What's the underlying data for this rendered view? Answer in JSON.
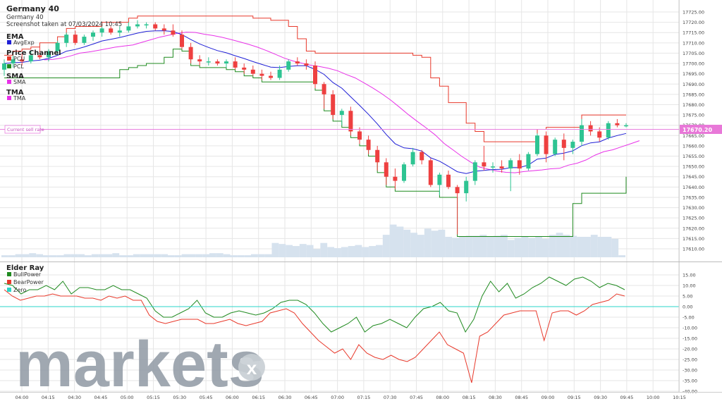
{
  "header": {
    "title": "Germany 40",
    "subtitle": "Germany 40",
    "screenshot_note": "Screenshot taken at 07/03/2024 10:45"
  },
  "legend": {
    "ema_title": "EMA",
    "ema_items": [
      {
        "label": "AvgExp",
        "color": "#1f1fd6"
      }
    ],
    "pc_title": "Price Channel",
    "pc_items": [
      {
        "label": "PCU",
        "color": "#e8392b"
      },
      {
        "label": "PCL",
        "color": "#1f8a1f"
      }
    ],
    "sma_title": "SMA",
    "sma_items": [
      {
        "label": "SMA",
        "color": "#e832e8"
      }
    ],
    "tma_title": "TMA",
    "tma_items": [
      {
        "label": "TMA",
        "color": "#e832e8"
      }
    ]
  },
  "sell_rate": {
    "label": "Current sell rate",
    "value": "17670.20",
    "level": 17670.2
  },
  "elder": {
    "title": "Elder Ray",
    "items": [
      {
        "label": "BullPower",
        "color": "#1f8a1f"
      },
      {
        "label": "BearPower",
        "color": "#e8392b"
      },
      {
        "label": "Zero",
        "color": "#2ad6c8"
      }
    ]
  },
  "watermark": "markets",
  "colors": {
    "up": "#2ec492",
    "down": "#ee4040",
    "volume": "#d6e2ee",
    "grid": "#e6e6e6"
  },
  "chart_data": [
    {
      "type": "candlestick",
      "title": "Germany 40",
      "x_ticks": [
        "04:00",
        "04:15",
        "04:30",
        "04:45",
        "05:00",
        "05:15",
        "05:30",
        "05:45",
        "06:00",
        "06:15",
        "06:30",
        "06:45",
        "07:00",
        "07:15",
        "07:30",
        "07:45",
        "08:00",
        "08:15",
        "08:30",
        "08:45",
        "09:00",
        "09:15",
        "09:30",
        "09:45",
        "10:00",
        "10:15"
      ],
      "y_ticks": [
        "17725.00",
        "17720.00",
        "17715.00",
        "17710.00",
        "17705.00",
        "17700.00",
        "17695.00",
        "17690.00",
        "17685.00",
        "17680.00",
        "17675.00",
        "17670.00",
        "17665.00",
        "17660.00",
        "17655.00",
        "17650.00",
        "17645.00",
        "17640.00",
        "17635.00",
        "17630.00",
        "17625.00",
        "17620.00",
        "17615.00",
        "17610.00"
      ],
      "ylim": [
        17609,
        17728
      ],
      "candles": [
        {
          "o": 17697,
          "h": 17702,
          "l": 17694,
          "c": 17700
        },
        {
          "o": 17700,
          "h": 17704,
          "l": 17698,
          "c": 17702
        },
        {
          "o": 17702,
          "h": 17705,
          "l": 17699,
          "c": 17701
        },
        {
          "o": 17701,
          "h": 17706,
          "l": 17700,
          "c": 17704
        },
        {
          "o": 17704,
          "h": 17708,
          "l": 17702,
          "c": 17703
        },
        {
          "o": 17703,
          "h": 17707,
          "l": 17701,
          "c": 17706
        },
        {
          "o": 17706,
          "h": 17711,
          "l": 17704,
          "c": 17710
        },
        {
          "o": 17710,
          "h": 17715,
          "l": 17708,
          "c": 17714
        },
        {
          "o": 17714,
          "h": 17716,
          "l": 17709,
          "c": 17710
        },
        {
          "o": 17710,
          "h": 17714,
          "l": 17709,
          "c": 17713
        },
        {
          "o": 17713,
          "h": 17716,
          "l": 17711,
          "c": 17715
        },
        {
          "o": 17715,
          "h": 17718,
          "l": 17713,
          "c": 17717
        },
        {
          "o": 17717,
          "h": 17718,
          "l": 17714,
          "c": 17715
        },
        {
          "o": 17715,
          "h": 17718,
          "l": 17713,
          "c": 17716
        },
        {
          "o": 17716,
          "h": 17720,
          "l": 17715,
          "c": 17718
        },
        {
          "o": 17718,
          "h": 17721,
          "l": 17717,
          "c": 17719
        },
        {
          "o": 17719,
          "h": 17720,
          "l": 17717,
          "c": 17719
        },
        {
          "o": 17719,
          "h": 17720,
          "l": 17716,
          "c": 17717
        },
        {
          "o": 17717,
          "h": 17719,
          "l": 17714,
          "c": 17716
        },
        {
          "o": 17716,
          "h": 17719,
          "l": 17713,
          "c": 17714
        },
        {
          "o": 17714,
          "h": 17716,
          "l": 17707,
          "c": 17708
        },
        {
          "o": 17708,
          "h": 17710,
          "l": 17700,
          "c": 17702
        },
        {
          "o": 17702,
          "h": 17704,
          "l": 17699,
          "c": 17701
        },
        {
          "o": 17701,
          "h": 17703,
          "l": 17699,
          "c": 17701
        },
        {
          "o": 17701,
          "h": 17702,
          "l": 17699,
          "c": 17700
        },
        {
          "o": 17700,
          "h": 17702,
          "l": 17698,
          "c": 17701
        },
        {
          "o": 17701,
          "h": 17703,
          "l": 17697,
          "c": 17698
        },
        {
          "o": 17698,
          "h": 17700,
          "l": 17695,
          "c": 17697
        },
        {
          "o": 17697,
          "h": 17699,
          "l": 17694,
          "c": 17695
        },
        {
          "o": 17695,
          "h": 17697,
          "l": 17692,
          "c": 17694
        },
        {
          "o": 17694,
          "h": 17696,
          "l": 17692,
          "c": 17693
        },
        {
          "o": 17693,
          "h": 17699,
          "l": 17692,
          "c": 17697
        },
        {
          "o": 17697,
          "h": 17702,
          "l": 17696,
          "c": 17701
        },
        {
          "o": 17701,
          "h": 17703,
          "l": 17699,
          "c": 17700
        },
        {
          "o": 17700,
          "h": 17702,
          "l": 17697,
          "c": 17699
        },
        {
          "o": 17699,
          "h": 17701,
          "l": 17688,
          "c": 17690
        },
        {
          "o": 17690,
          "h": 17691,
          "l": 17678,
          "c": 17685
        },
        {
          "o": 17685,
          "h": 17687,
          "l": 17673,
          "c": 17675
        },
        {
          "o": 17675,
          "h": 17678,
          "l": 17670,
          "c": 17677
        },
        {
          "o": 17677,
          "h": 17679,
          "l": 17665,
          "c": 17667
        },
        {
          "o": 17667,
          "h": 17669,
          "l": 17661,
          "c": 17663
        },
        {
          "o": 17663,
          "h": 17665,
          "l": 17656,
          "c": 17658
        },
        {
          "o": 17658,
          "h": 17660,
          "l": 17648,
          "c": 17652
        },
        {
          "o": 17652,
          "h": 17654,
          "l": 17641,
          "c": 17645
        },
        {
          "o": 17645,
          "h": 17649,
          "l": 17639,
          "c": 17643
        },
        {
          "o": 17643,
          "h": 17652,
          "l": 17642,
          "c": 17651
        },
        {
          "o": 17651,
          "h": 17659,
          "l": 17650,
          "c": 17657
        },
        {
          "o": 17657,
          "h": 17658,
          "l": 17651,
          "c": 17653
        },
        {
          "o": 17653,
          "h": 17654,
          "l": 17640,
          "c": 17641
        },
        {
          "o": 17641,
          "h": 17647,
          "l": 17636,
          "c": 17646
        },
        {
          "o": 17646,
          "h": 17648,
          "l": 17639,
          "c": 17640
        },
        {
          "o": 17640,
          "h": 17641,
          "l": 17617,
          "c": 17637
        },
        {
          "o": 17637,
          "h": 17645,
          "l": 17633,
          "c": 17643
        },
        {
          "o": 17643,
          "h": 17653,
          "l": 17641,
          "c": 17652
        },
        {
          "o": 17652,
          "h": 17660,
          "l": 17648,
          "c": 17650
        },
        {
          "o": 17650,
          "h": 17652,
          "l": 17647,
          "c": 17650
        },
        {
          "o": 17650,
          "h": 17653,
          "l": 17647,
          "c": 17649
        },
        {
          "o": 17649,
          "h": 17654,
          "l": 17638,
          "c": 17653
        },
        {
          "o": 17653,
          "h": 17656,
          "l": 17646,
          "c": 17649
        },
        {
          "o": 17649,
          "h": 17657,
          "l": 17648,
          "c": 17656
        },
        {
          "o": 17656,
          "h": 17666,
          "l": 17655,
          "c": 17665
        },
        {
          "o": 17665,
          "h": 17667,
          "l": 17652,
          "c": 17656
        },
        {
          "o": 17656,
          "h": 17664,
          "l": 17655,
          "c": 17663
        },
        {
          "o": 17663,
          "h": 17666,
          "l": 17653,
          "c": 17659
        },
        {
          "o": 17659,
          "h": 17663,
          "l": 17656,
          "c": 17662
        },
        {
          "o": 17662,
          "h": 17673,
          "l": 17660,
          "c": 17670
        },
        {
          "o": 17670,
          "h": 17672,
          "l": 17665,
          "c": 17667
        },
        {
          "o": 17667,
          "h": 17669,
          "l": 17662,
          "c": 17664
        },
        {
          "o": 17664,
          "h": 17672,
          "l": 17663,
          "c": 17671
        },
        {
          "o": 17671,
          "h": 17673,
          "l": 17669,
          "c": 17670
        },
        {
          "o": 17670,
          "h": 17671,
          "l": 17669,
          "c": 17670
        }
      ],
      "volume": [
        2,
        2,
        3,
        3,
        4,
        3,
        2,
        2,
        2,
        3,
        3,
        3,
        2,
        3,
        3,
        3,
        4,
        2,
        2,
        3,
        3,
        3,
        3,
        3,
        2,
        2,
        3,
        3,
        3,
        3,
        4,
        4,
        3,
        2,
        2,
        2,
        3,
        3,
        3,
        14,
        13,
        12,
        11,
        13,
        12,
        8,
        14,
        10,
        9,
        10,
        11,
        12,
        10,
        11,
        12,
        22,
        32,
        30,
        27,
        24,
        22,
        28,
        26,
        27,
        20,
        19,
        20,
        21,
        21,
        22,
        20,
        21,
        22,
        17,
        19,
        20,
        19,
        20,
        18,
        22,
        24,
        22,
        21,
        20,
        20,
        22,
        20,
        20,
        18,
        2
      ]
    },
    {
      "type": "line",
      "title": "Elder Ray",
      "y_ticks": [
        "15.00",
        "10.00",
        "5.00",
        "0.00",
        "-5.00",
        "-10.00",
        "-15.00",
        "-20.00",
        "-25.00",
        "-30.00",
        "-35.00",
        "-40.00"
      ],
      "ylim": [
        -42,
        18
      ],
      "series": [
        {
          "name": "BullPower",
          "values": [
            11,
            10,
            6,
            8,
            8,
            10,
            8,
            12,
            6,
            9,
            9,
            8,
            8,
            10,
            8,
            8,
            6,
            4,
            -2,
            -5,
            -5,
            -3,
            -1,
            3,
            -3,
            -5,
            -5,
            -3,
            -2,
            -3,
            -4,
            -3,
            -1,
            2,
            3,
            3,
            1,
            -3,
            -8,
            -12,
            -10,
            -8,
            -5,
            -12,
            -9,
            -8,
            -6,
            -8,
            -10,
            -5,
            -1,
            0,
            2,
            -2,
            -3,
            -12,
            -6,
            5,
            12,
            7,
            11,
            4,
            6,
            9,
            11,
            14,
            12,
            10,
            13,
            14,
            12,
            9,
            11,
            10,
            8
          ]
        },
        {
          "name": "BearPower",
          "values": [
            8,
            5,
            3,
            4,
            5,
            5,
            6,
            5,
            5,
            5,
            4,
            4,
            3,
            5,
            4,
            5,
            3,
            3,
            -4,
            -7,
            -8,
            -7,
            -6,
            -6,
            -6,
            -8,
            -8,
            -7,
            -6,
            -8,
            -9,
            -8,
            -7,
            -3,
            -2,
            -1,
            -3,
            -8,
            -12,
            -16,
            -19,
            -22,
            -20,
            -25,
            -18,
            -22,
            -24,
            -25,
            -23,
            -25,
            -26,
            -24,
            -20,
            -16,
            -12,
            -18,
            -20,
            -22,
            -36,
            -14,
            -12,
            -8,
            -4,
            -3,
            -2,
            -2,
            -2,
            -16,
            -3,
            -2,
            -2,
            -4,
            -2,
            1,
            2,
            3,
            6,
            5
          ]
        },
        {
          "name": "Zero",
          "values": [
            0
          ]
        }
      ]
    }
  ]
}
